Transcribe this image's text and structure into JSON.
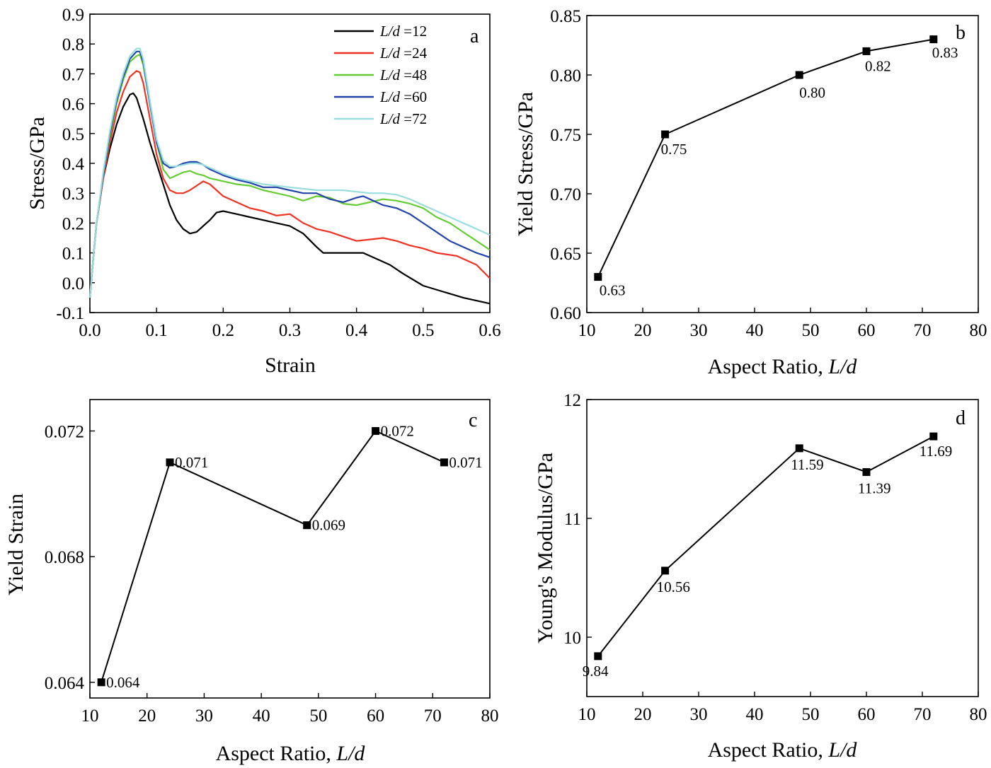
{
  "chart_data": [
    {
      "id": "a",
      "type": "line",
      "panel_label": "a",
      "xlabel": "Strain",
      "ylabel": "Stress/GPa",
      "xlim": [
        0.0,
        0.6
      ],
      "ylim": [
        -0.1,
        0.9
      ],
      "xticks": [
        "0.0",
        "0.1",
        "0.2",
        "0.3",
        "0.4",
        "0.5",
        "0.6"
      ],
      "yticks": [
        "-0.1",
        "0.0",
        "0.1",
        "0.2",
        "0.3",
        "0.4",
        "0.5",
        "0.6",
        "0.7",
        "0.8",
        "0.9"
      ],
      "legend_position": "top-right",
      "series": [
        {
          "name": "L/d =12",
          "label_italic": "L/d",
          "label_value": "12",
          "color": "#000000",
          "x": [
            0,
            0.005,
            0.01,
            0.02,
            0.03,
            0.04,
            0.05,
            0.06,
            0.065,
            0.07,
            0.08,
            0.09,
            0.1,
            0.11,
            0.12,
            0.13,
            0.14,
            0.15,
            0.16,
            0.17,
            0.18,
            0.19,
            0.2,
            0.22,
            0.24,
            0.26,
            0.28,
            0.3,
            0.32,
            0.34,
            0.35,
            0.37,
            0.39,
            0.41,
            0.43,
            0.45,
            0.47,
            0.5,
            0.53,
            0.56,
            0.6
          ],
          "y": [
            -0.05,
            0.08,
            0.2,
            0.35,
            0.45,
            0.53,
            0.59,
            0.63,
            0.635,
            0.62,
            0.55,
            0.47,
            0.4,
            0.33,
            0.26,
            0.21,
            0.18,
            0.165,
            0.17,
            0.19,
            0.21,
            0.235,
            0.24,
            0.23,
            0.22,
            0.21,
            0.2,
            0.19,
            0.165,
            0.12,
            0.1,
            0.1,
            0.1,
            0.1,
            0.08,
            0.06,
            0.03,
            -0.01,
            -0.03,
            -0.05,
            -0.07
          ]
        },
        {
          "name": "L/d =24",
          "label_italic": "L/d",
          "label_value": "24",
          "color": "#ee3322",
          "x": [
            0,
            0.005,
            0.01,
            0.02,
            0.03,
            0.04,
            0.05,
            0.06,
            0.07,
            0.075,
            0.08,
            0.09,
            0.1,
            0.11,
            0.12,
            0.13,
            0.14,
            0.15,
            0.16,
            0.17,
            0.18,
            0.19,
            0.2,
            0.22,
            0.24,
            0.26,
            0.28,
            0.3,
            0.32,
            0.34,
            0.36,
            0.38,
            0.4,
            0.42,
            0.44,
            0.46,
            0.48,
            0.5,
            0.52,
            0.55,
            0.58,
            0.6
          ],
          "y": [
            -0.05,
            0.08,
            0.2,
            0.35,
            0.47,
            0.57,
            0.64,
            0.69,
            0.71,
            0.705,
            0.67,
            0.55,
            0.43,
            0.35,
            0.31,
            0.3,
            0.3,
            0.31,
            0.325,
            0.34,
            0.33,
            0.31,
            0.29,
            0.27,
            0.25,
            0.24,
            0.225,
            0.23,
            0.2,
            0.18,
            0.17,
            0.155,
            0.14,
            0.145,
            0.15,
            0.14,
            0.125,
            0.115,
            0.1,
            0.09,
            0.06,
            0.015
          ]
        },
        {
          "name": "L/d =48",
          "label_italic": "L/d",
          "label_value": "48",
          "color": "#66cc33",
          "x": [
            0,
            0.005,
            0.01,
            0.02,
            0.03,
            0.04,
            0.05,
            0.06,
            0.07,
            0.075,
            0.08,
            0.09,
            0.1,
            0.11,
            0.12,
            0.13,
            0.14,
            0.15,
            0.16,
            0.17,
            0.18,
            0.2,
            0.22,
            0.24,
            0.26,
            0.28,
            0.3,
            0.32,
            0.34,
            0.36,
            0.38,
            0.4,
            0.42,
            0.44,
            0.46,
            0.48,
            0.5,
            0.52,
            0.54,
            0.56,
            0.58,
            0.6
          ],
          "y": [
            -0.05,
            0.08,
            0.2,
            0.36,
            0.49,
            0.6,
            0.68,
            0.74,
            0.76,
            0.765,
            0.73,
            0.6,
            0.47,
            0.38,
            0.35,
            0.36,
            0.37,
            0.375,
            0.365,
            0.36,
            0.35,
            0.34,
            0.33,
            0.325,
            0.31,
            0.3,
            0.29,
            0.275,
            0.29,
            0.285,
            0.265,
            0.26,
            0.27,
            0.28,
            0.275,
            0.265,
            0.25,
            0.22,
            0.2,
            0.17,
            0.14,
            0.11
          ]
        },
        {
          "name": "L/d =60",
          "label_italic": "L/d",
          "label_value": "60",
          "color": "#2244aa",
          "x": [
            0,
            0.005,
            0.01,
            0.02,
            0.03,
            0.04,
            0.05,
            0.06,
            0.07,
            0.075,
            0.08,
            0.09,
            0.1,
            0.11,
            0.12,
            0.13,
            0.14,
            0.15,
            0.16,
            0.17,
            0.18,
            0.2,
            0.22,
            0.24,
            0.26,
            0.28,
            0.3,
            0.32,
            0.34,
            0.36,
            0.38,
            0.4,
            0.41,
            0.42,
            0.44,
            0.46,
            0.48,
            0.5,
            0.52,
            0.54,
            0.56,
            0.58,
            0.6
          ],
          "y": [
            -0.05,
            0.08,
            0.2,
            0.36,
            0.5,
            0.61,
            0.69,
            0.75,
            0.775,
            0.775,
            0.74,
            0.6,
            0.47,
            0.4,
            0.385,
            0.39,
            0.4,
            0.405,
            0.405,
            0.395,
            0.38,
            0.36,
            0.345,
            0.335,
            0.32,
            0.32,
            0.31,
            0.3,
            0.3,
            0.28,
            0.27,
            0.285,
            0.29,
            0.28,
            0.26,
            0.25,
            0.23,
            0.2,
            0.17,
            0.14,
            0.12,
            0.1,
            0.085
          ]
        },
        {
          "name": "L/d =72",
          "label_italic": "L/d",
          "label_value": "72",
          "color": "#99dddd",
          "x": [
            0,
            0.005,
            0.01,
            0.02,
            0.03,
            0.04,
            0.05,
            0.06,
            0.07,
            0.075,
            0.08,
            0.09,
            0.1,
            0.11,
            0.12,
            0.13,
            0.14,
            0.15,
            0.16,
            0.17,
            0.18,
            0.2,
            0.22,
            0.24,
            0.26,
            0.28,
            0.3,
            0.32,
            0.34,
            0.36,
            0.38,
            0.4,
            0.42,
            0.44,
            0.46,
            0.48,
            0.5,
            0.52,
            0.54,
            0.56,
            0.58,
            0.6
          ],
          "y": [
            -0.05,
            0.08,
            0.2,
            0.37,
            0.51,
            0.62,
            0.7,
            0.76,
            0.785,
            0.785,
            0.75,
            0.61,
            0.48,
            0.41,
            0.39,
            0.39,
            0.395,
            0.4,
            0.4,
            0.395,
            0.385,
            0.365,
            0.35,
            0.34,
            0.33,
            0.325,
            0.32,
            0.315,
            0.31,
            0.31,
            0.31,
            0.305,
            0.3,
            0.3,
            0.295,
            0.28,
            0.26,
            0.24,
            0.22,
            0.2,
            0.18,
            0.16
          ]
        }
      ]
    },
    {
      "id": "b",
      "type": "line",
      "panel_label": "b",
      "xlabel": "Aspect Ratio, ",
      "xlabel_italic": "L/d",
      "ylabel": "Yield Stress/GPa",
      "xlim": [
        10,
        80
      ],
      "ylim": [
        0.6,
        0.85
      ],
      "xticks": [
        "10",
        "20",
        "30",
        "40",
        "50",
        "60",
        "70",
        "80"
      ],
      "yticks": [
        "0.60",
        "0.65",
        "0.70",
        "0.75",
        "0.80",
        "0.85"
      ],
      "x": [
        12,
        24,
        48,
        60,
        72
      ],
      "y": [
        0.63,
        0.75,
        0.8,
        0.82,
        0.83
      ],
      "labels": [
        "0.63",
        "0.75",
        "0.80",
        "0.82",
        "0.83"
      ]
    },
    {
      "id": "c",
      "type": "line",
      "panel_label": "c",
      "xlabel": "Aspect Ratio, ",
      "xlabel_italic": "L/d",
      "ylabel": "Yield Strain",
      "xlim": [
        10,
        80
      ],
      "ylim": [
        0.0635,
        0.073
      ],
      "xticks": [
        "10",
        "20",
        "30",
        "40",
        "50",
        "60",
        "70",
        "80"
      ],
      "yticks": [
        "0.064",
        "0.068",
        "0.072"
      ],
      "x": [
        12,
        24,
        48,
        60,
        72
      ],
      "y": [
        0.064,
        0.071,
        0.069,
        0.072,
        0.071
      ],
      "labels": [
        "0.064",
        "0.071",
        "0.069",
        "0.072",
        "0.071"
      ]
    },
    {
      "id": "d",
      "type": "line",
      "panel_label": "d",
      "xlabel": "Aspect Ratio, ",
      "xlabel_italic": "L/d",
      "ylabel": "Young's Modulus/GPa",
      "xlim": [
        10,
        80
      ],
      "ylim": [
        9.5,
        12
      ],
      "xticks": [
        "10",
        "20",
        "30",
        "40",
        "50",
        "60",
        "70",
        "80"
      ],
      "yticks": [
        "10",
        "11",
        "12"
      ],
      "x": [
        12,
        24,
        48,
        60,
        72
      ],
      "y": [
        9.84,
        10.56,
        11.59,
        11.39,
        11.69
      ],
      "labels": [
        "9.84",
        "10.56",
        "11.59",
        "11.39",
        "11.69"
      ]
    }
  ]
}
